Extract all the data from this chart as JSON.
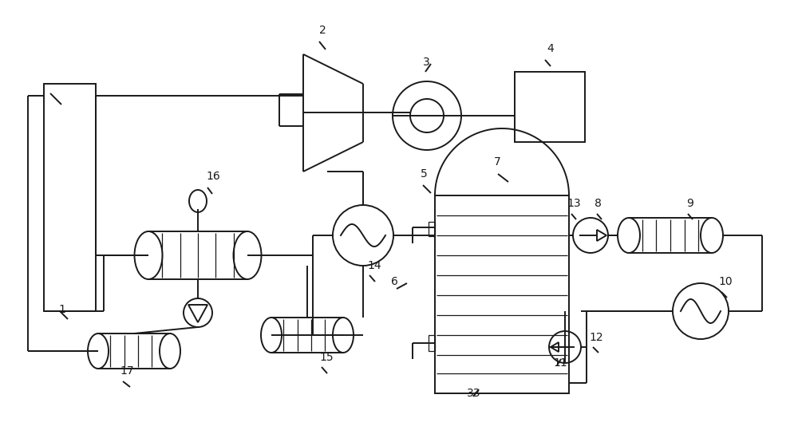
{
  "bg_color": "#ffffff",
  "line_color": "#1a1a1a",
  "lw": 1.4,
  "fig_w": 10.0,
  "fig_h": 5.54
}
